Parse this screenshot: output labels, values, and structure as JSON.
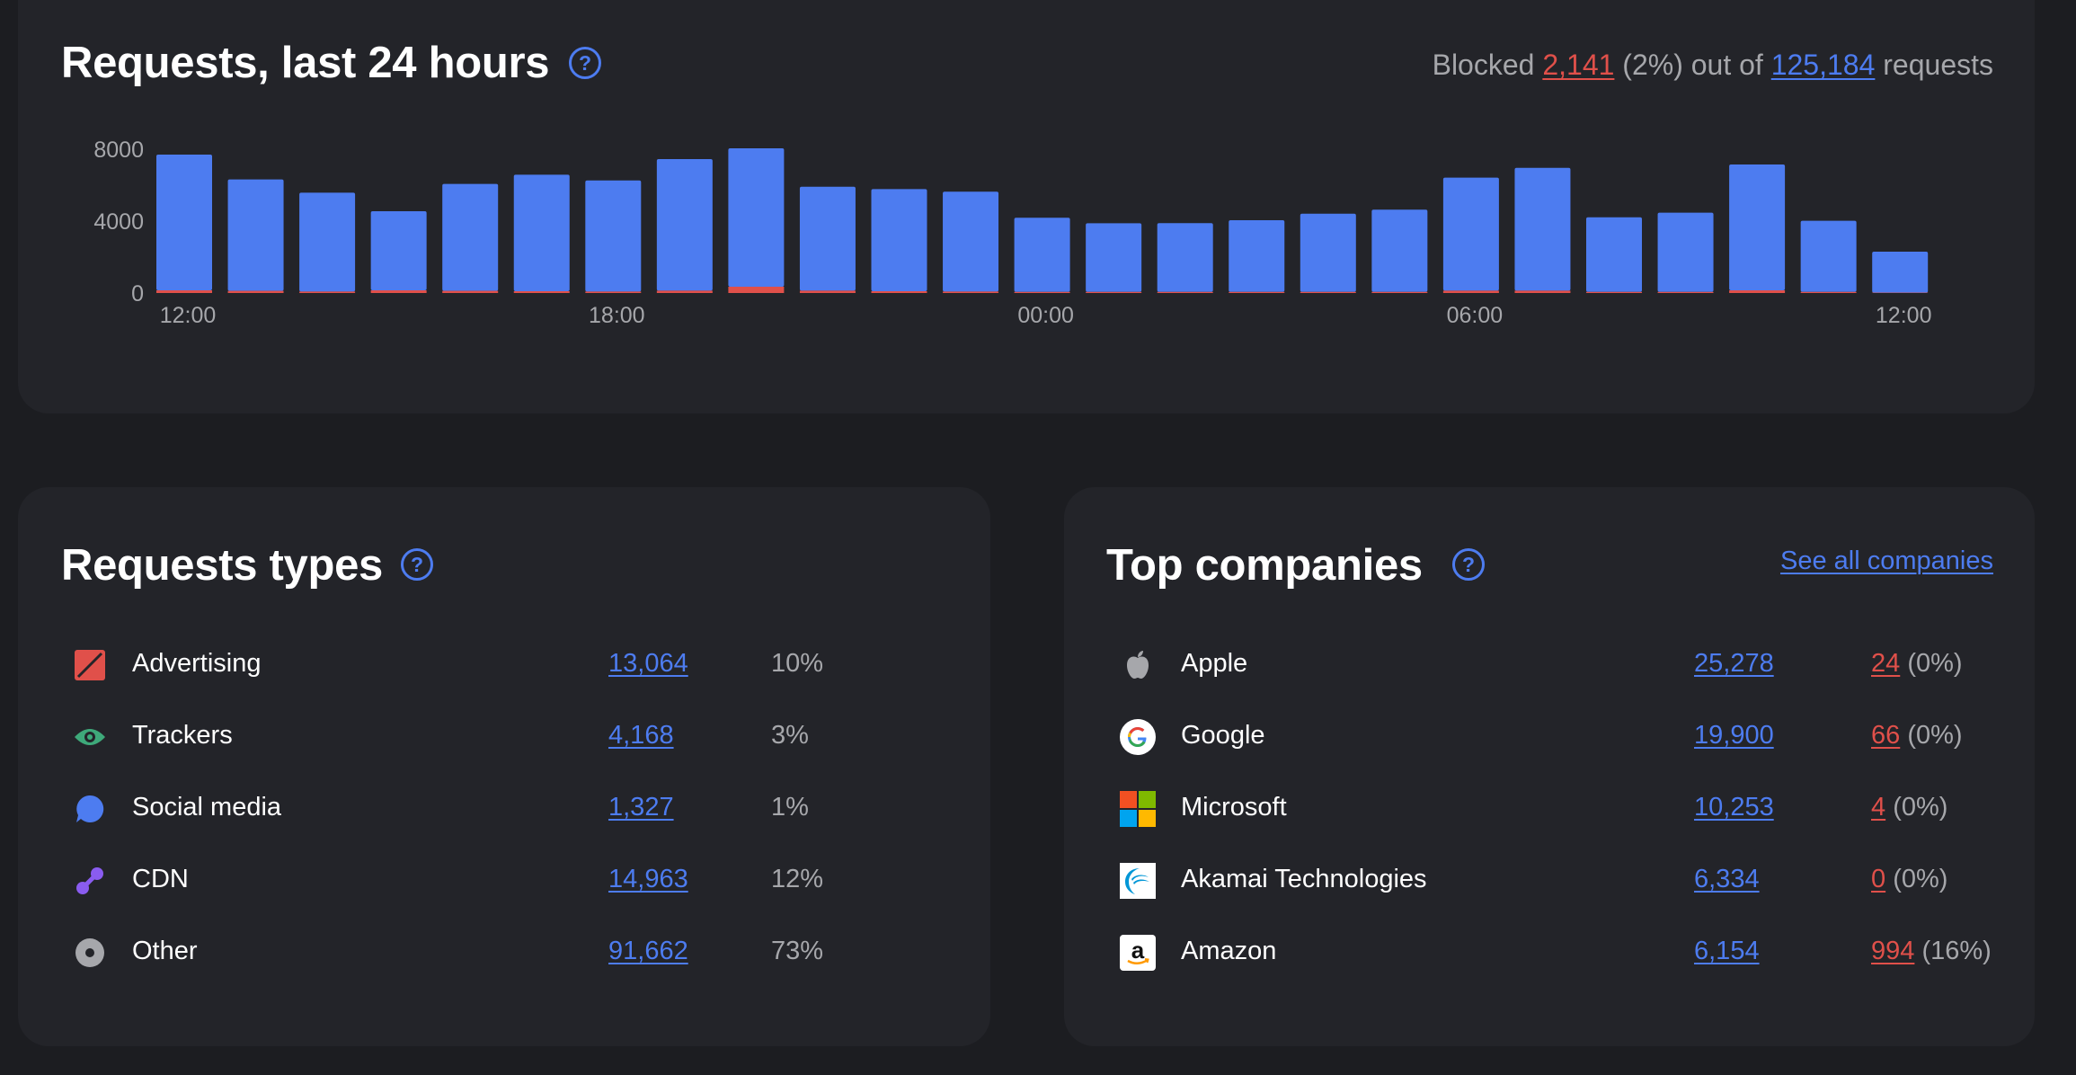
{
  "chart_card": {
    "title": "Requests, last 24 hours",
    "help": "?",
    "summary": {
      "prefix": "Blocked",
      "blocked": "2,141",
      "blocked_pct": "(2%)",
      "middle": "out of",
      "total": "125,184",
      "suffix": "requests"
    }
  },
  "chart_data": {
    "type": "bar",
    "stacked": true,
    "ylim": [
      0,
      8000
    ],
    "y_ticks": [
      "0",
      "4000",
      "8000"
    ],
    "x_ticks": [
      "12:00",
      "18:00",
      "00:00",
      "06:00",
      "12:00"
    ],
    "series": [
      {
        "name": "Blocked",
        "values": [
          150,
          120,
          80,
          150,
          120,
          100,
          80,
          130,
          350,
          130,
          100,
          80,
          60,
          60,
          60,
          60,
          60,
          60,
          130,
          130,
          60,
          60,
          150,
          60,
          20
        ]
      },
      {
        "name": "Requests",
        "values": [
          7550,
          6200,
          5500,
          4400,
          5950,
          6480,
          6180,
          7320,
          7700,
          5780,
          5680,
          5560,
          4130,
          3820,
          3830,
          3990,
          4350,
          4580,
          6290,
          6830,
          4150,
          4410,
          7000,
          3960,
          2280
        ]
      }
    ],
    "colors": {
      "requests": "#4d7cf0",
      "blocked": "#e0504a"
    }
  },
  "types_card": {
    "title": "Requests types",
    "help": "?",
    "rows": [
      {
        "icon": "advertising-icon",
        "label": "Advertising",
        "count": "13,064",
        "pct": "10%"
      },
      {
        "icon": "trackers-icon",
        "label": "Trackers",
        "count": "4,168",
        "pct": "3%"
      },
      {
        "icon": "social-media-icon",
        "label": "Social media",
        "count": "1,327",
        "pct": "1%"
      },
      {
        "icon": "cdn-icon",
        "label": "CDN",
        "count": "14,963",
        "pct": "12%"
      },
      {
        "icon": "other-icon",
        "label": "Other",
        "count": "91,662",
        "pct": "73%"
      }
    ]
  },
  "companies_card": {
    "title": "Top companies",
    "help": "?",
    "see_all": "See all companies",
    "rows": [
      {
        "icon": "apple-icon",
        "label": "Apple",
        "count": "25,278",
        "blocked": "24",
        "blocked_pct": "(0%)"
      },
      {
        "icon": "google-icon",
        "label": "Google",
        "count": "19,900",
        "blocked": "66",
        "blocked_pct": "(0%)"
      },
      {
        "icon": "microsoft-icon",
        "label": "Microsoft",
        "count": "10,253",
        "blocked": "4",
        "blocked_pct": "(0%)"
      },
      {
        "icon": "akamai-icon",
        "label": "Akamai Technologies",
        "count": "6,334",
        "blocked": "0",
        "blocked_pct": "(0%)"
      },
      {
        "icon": "amazon-icon",
        "label": "Amazon",
        "count": "6,154",
        "blocked": "994",
        "blocked_pct": "(16%)"
      }
    ]
  }
}
